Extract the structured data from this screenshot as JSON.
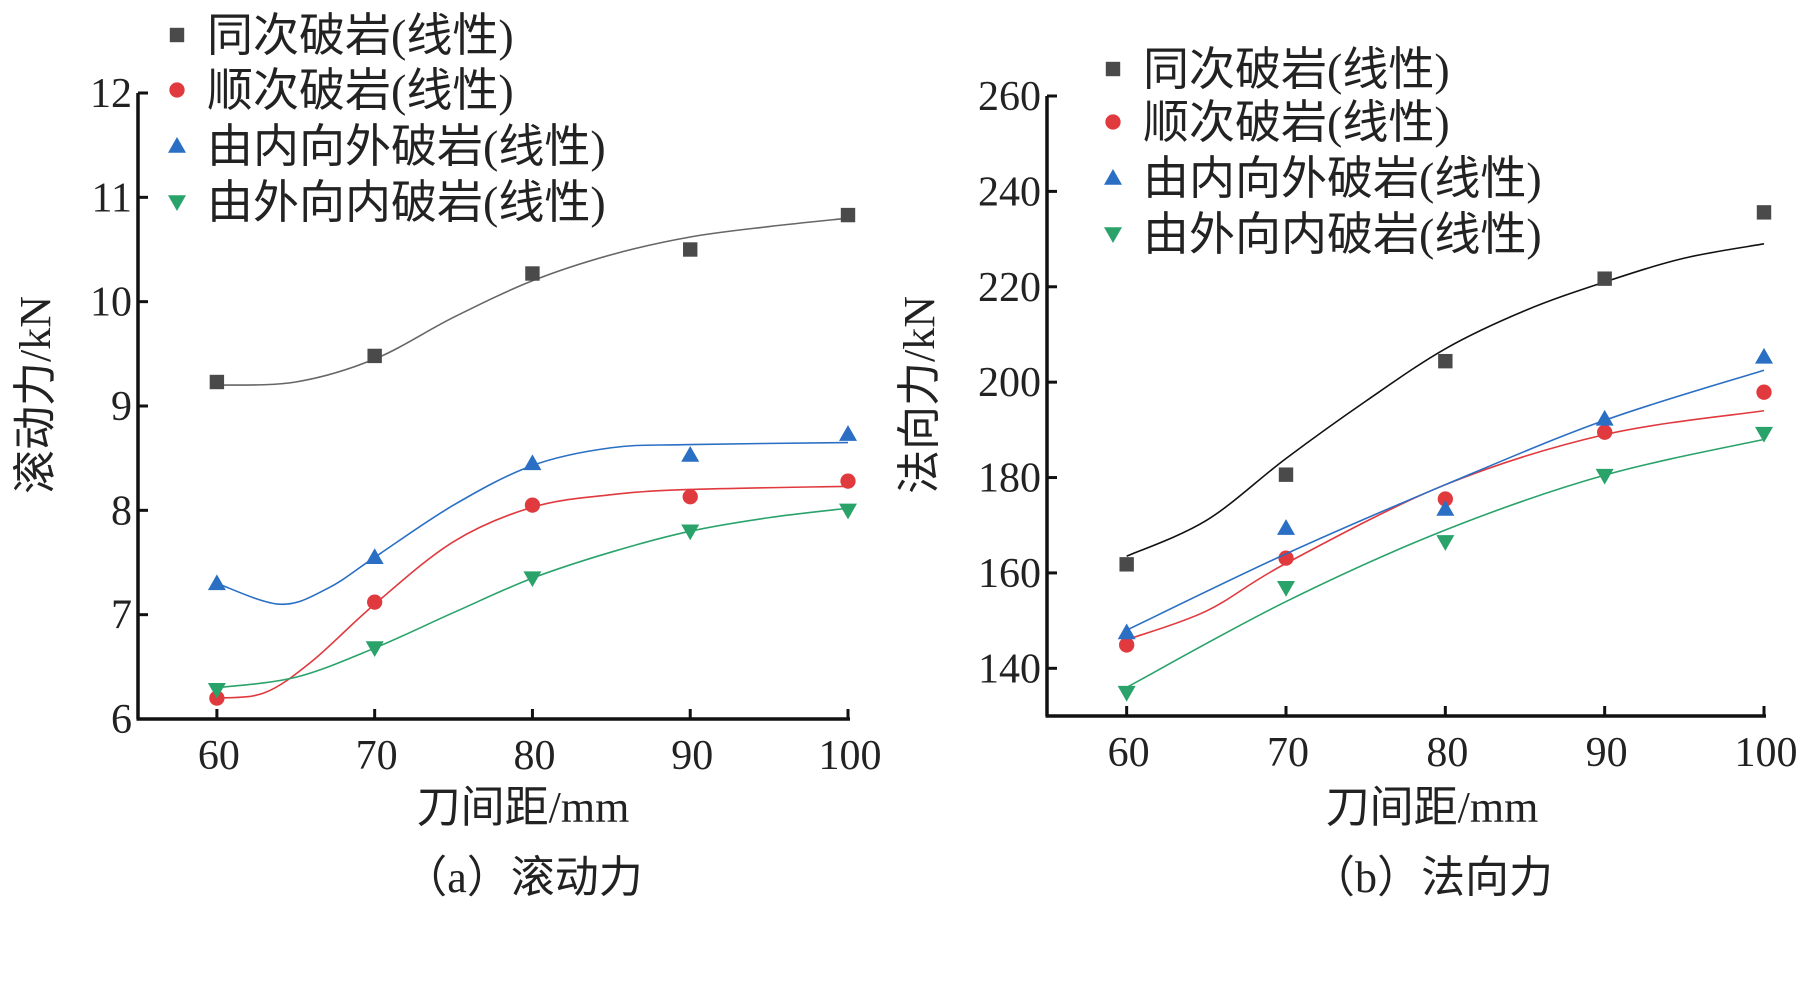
{
  "colors": {
    "gray": "#4a4a4a",
    "red": "#e0393e",
    "blue": "#2a6fc4",
    "green": "#2aa36b",
    "axis": "#111111"
  },
  "chart_data": [
    {
      "type": "scatter",
      "caption": "（a）滚动力",
      "xlabel": "刀间距/mm",
      "ylabel": "滚动力/kN",
      "xlim": [
        55,
        100
      ],
      "ylim": [
        6,
        12
      ],
      "xticks": [
        60,
        70,
        80,
        90,
        100
      ],
      "yticks": [
        6,
        7,
        8,
        9,
        10,
        11,
        12
      ],
      "grid": false,
      "legend_position": "top-left",
      "x": [
        60,
        70,
        80,
        90,
        100
      ],
      "series": [
        {
          "name": "同次破岩(线性)",
          "color": "gray",
          "marker": "square",
          "values": [
            9.23,
            9.48,
            10.27,
            10.5,
            10.83
          ],
          "fit": [
            [
              60,
              9.2
            ],
            [
              65,
              9.23
            ],
            [
              70,
              9.45
            ],
            [
              75,
              9.85
            ],
            [
              80,
              10.2
            ],
            [
              85,
              10.45
            ],
            [
              90,
              10.62
            ],
            [
              95,
              10.72
            ],
            [
              100,
              10.8
            ]
          ]
        },
        {
          "name": "顺次破岩(线性)",
          "color": "red",
          "marker": "circle",
          "values": [
            6.2,
            7.12,
            8.05,
            8.13,
            8.28
          ],
          "fit": [
            [
              60,
              6.2
            ],
            [
              63,
              6.25
            ],
            [
              66,
              6.55
            ],
            [
              70,
              7.1
            ],
            [
              75,
              7.7
            ],
            [
              80,
              8.03
            ],
            [
              85,
              8.15
            ],
            [
              90,
              8.2
            ],
            [
              100,
              8.23
            ]
          ]
        },
        {
          "name": "由内向外破岩(线性)",
          "color": "blue",
          "marker": "triangle-up",
          "values": [
            7.3,
            7.55,
            8.45,
            8.53,
            8.73
          ],
          "fit": [
            [
              60,
              7.3
            ],
            [
              64,
              7.1
            ],
            [
              67,
              7.25
            ],
            [
              70,
              7.55
            ],
            [
              75,
              8.05
            ],
            [
              80,
              8.43
            ],
            [
              85,
              8.6
            ],
            [
              90,
              8.63
            ],
            [
              100,
              8.65
            ]
          ]
        },
        {
          "name": "由外向内破岩(线性)",
          "color": "green",
          "marker": "triangle-down",
          "values": [
            6.28,
            6.68,
            7.35,
            7.8,
            8.0
          ],
          "fit": [
            [
              60,
              6.3
            ],
            [
              65,
              6.4
            ],
            [
              70,
              6.68
            ],
            [
              75,
              7.02
            ],
            [
              80,
              7.35
            ],
            [
              85,
              7.6
            ],
            [
              90,
              7.8
            ],
            [
              95,
              7.93
            ],
            [
              100,
              8.02
            ]
          ]
        }
      ]
    },
    {
      "type": "scatter",
      "caption": "（b）法向力",
      "xlabel": "刀间距/mm",
      "ylabel": "法向力/kN",
      "xlim": [
        55,
        100
      ],
      "ylim": [
        130,
        260
      ],
      "xticks": [
        60,
        70,
        80,
        90,
        100
      ],
      "yticks": [
        140,
        160,
        180,
        200,
        220,
        240,
        260
      ],
      "grid": false,
      "legend_position": "top-left",
      "x": [
        60,
        70,
        80,
        90,
        100
      ],
      "series": [
        {
          "name": "同次破岩(线性)",
          "color": "gray",
          "marker": "square",
          "values": [
            161.8,
            180.6,
            204.4,
            221.7,
            235.6
          ],
          "fit": [
            [
              60,
              163.5
            ],
            [
              65,
              171
            ],
            [
              70,
              184
            ],
            [
              75,
              196
            ],
            [
              80,
              207
            ],
            [
              85,
              215
            ],
            [
              90,
              221
            ],
            [
              95,
              226
            ],
            [
              100,
              229
            ]
          ]
        },
        {
          "name": "顺次破岩(线性)",
          "color": "red",
          "marker": "circle",
          "values": [
            144.9,
            163.1,
            175.5,
            189.5,
            197.9
          ],
          "fit": [
            [
              60,
              146
            ],
            [
              65,
              152
            ],
            [
              70,
              162
            ],
            [
              80,
              178.5
            ],
            [
              90,
              189
            ],
            [
              100,
              194
            ]
          ]
        },
        {
          "name": "由内向外破岩(线性)",
          "color": "blue",
          "marker": "triangle-up",
          "values": [
            147.5,
            169.4,
            173.4,
            192.3,
            205.3
          ],
          "fit": [
            [
              60,
              148
            ],
            [
              70,
              164
            ],
            [
              80,
              178.5
            ],
            [
              90,
              192
            ],
            [
              100,
              202.5
            ]
          ]
        },
        {
          "name": "由外向内破岩(线性)",
          "color": "green",
          "marker": "triangle-down",
          "values": [
            134.9,
            156.9,
            166.5,
            180.4,
            189.2
          ],
          "fit": [
            [
              60,
              136
            ],
            [
              70,
              154
            ],
            [
              80,
              169
            ],
            [
              90,
              180.5
            ],
            [
              100,
              188
            ]
          ]
        }
      ]
    }
  ]
}
